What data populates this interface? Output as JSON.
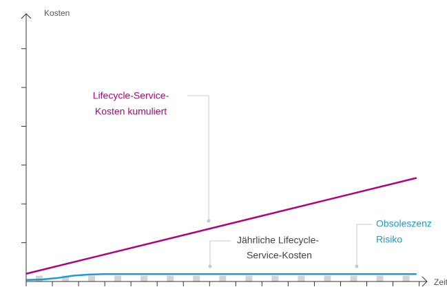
{
  "chart_data": {
    "type": "line",
    "y_label": "Kosten",
    "x_label": "Zeit",
    "xlim": [
      0,
      15.3
    ],
    "ylim": [
      0,
      6.9
    ],
    "xticks": [
      0,
      1,
      2,
      3,
      4,
      5,
      6,
      7,
      8,
      9,
      10,
      11,
      12,
      13,
      14,
      15
    ],
    "yticks": [
      1,
      2,
      3,
      4,
      5,
      6
    ],
    "series": [
      {
        "type": "bar",
        "color": "#d3d3d3",
        "x": [
          0.5,
          1.5,
          2.5,
          3.5,
          4.5,
          5.5,
          6.5,
          7.5,
          8.5,
          9.5,
          10.5,
          11.5,
          12.5,
          13.5,
          14.5
        ],
        "values": [
          0.15,
          0.15,
          0.15,
          0.15,
          0.15,
          0.15,
          0.15,
          0.15,
          0.15,
          0.15,
          0.15,
          0.15,
          0.15,
          0.15,
          0.15
        ]
      },
      {
        "type": "line",
        "color": "#b5007a",
        "x": [
          0,
          14.9
        ],
        "values": [
          0.2,
          2.67
        ]
      },
      {
        "type": "line",
        "color": "#1a9ad6",
        "x": [
          0,
          0.6,
          1.2,
          1.8,
          2.4,
          3.0,
          14.9
        ],
        "values": [
          0.04,
          0.05,
          0.09,
          0.15,
          0.18,
          0.19,
          0.19
        ]
      }
    ],
    "annotations": [
      {
        "lines": [
          "Lifecycle-Service-",
          "Kosten kumuliert"
        ],
        "color": "#b5007a"
      },
      {
        "lines": [
          "Jährliche Lifecycle-",
          "Service-Kosten"
        ],
        "color": "#444444"
      },
      {
        "lines": [
          "Obsoleszenz",
          "Risiko"
        ],
        "color": "#1a9ad6"
      }
    ]
  }
}
